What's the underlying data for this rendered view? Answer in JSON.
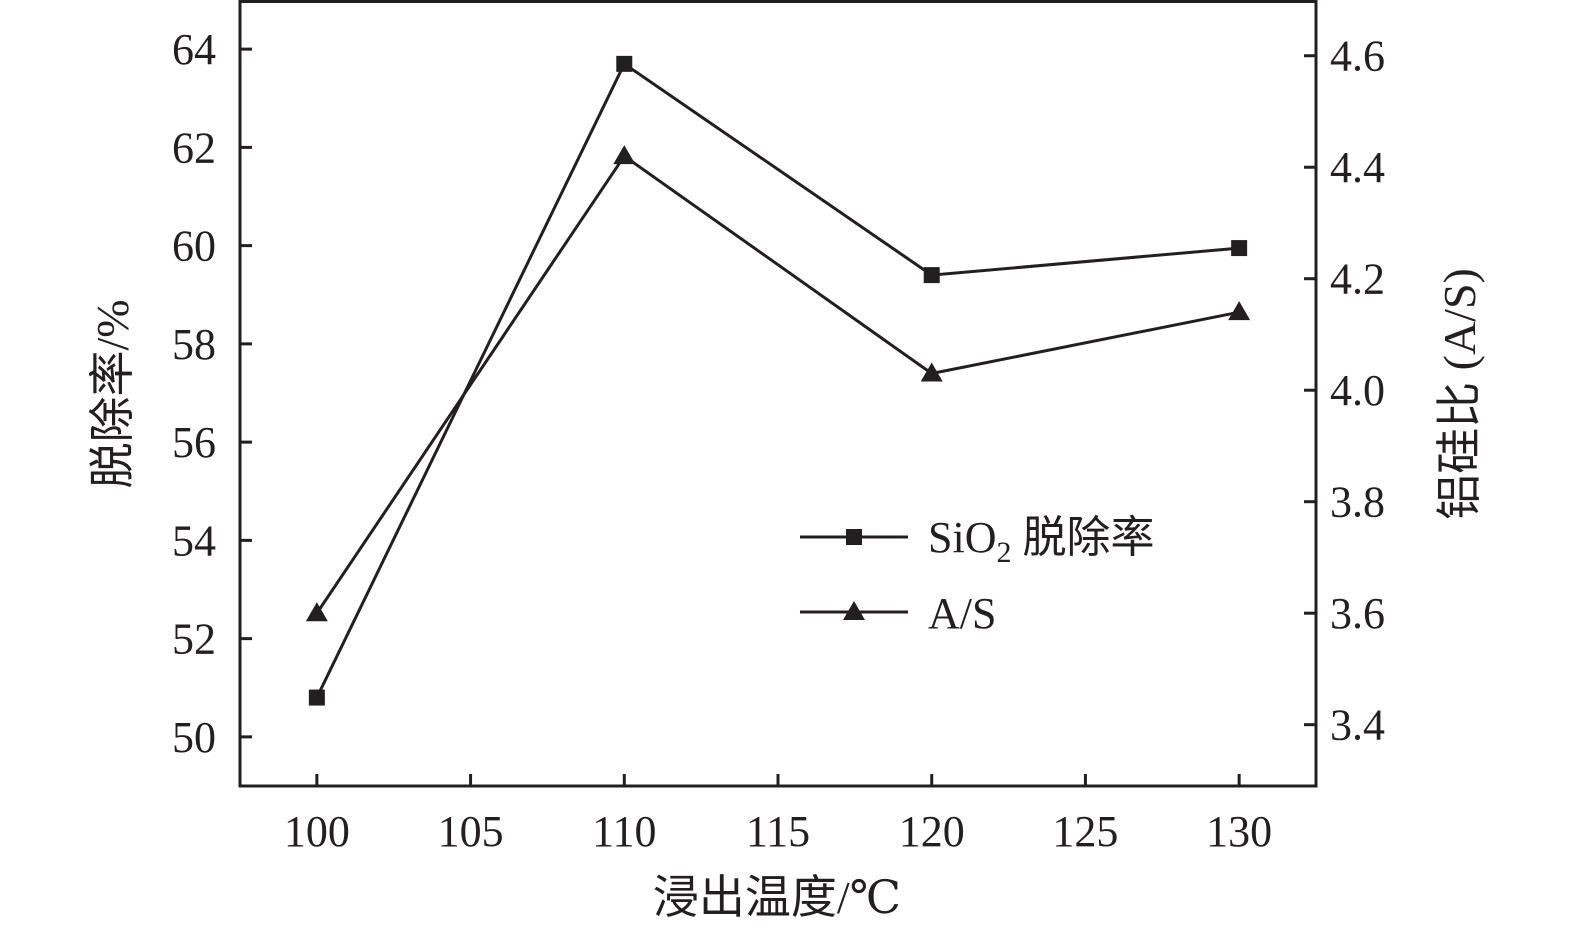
{
  "chart_data": {
    "type": "line",
    "title": "",
    "xlabel": "浸出温度/℃",
    "ylabel": "脱除率/%",
    "y2label": "铝硅比 (A/S)",
    "x": [
      100,
      110,
      120,
      130
    ],
    "xlim": [
      97.5,
      132.5
    ],
    "xticks": [
      100,
      105,
      110,
      115,
      120,
      125,
      130
    ],
    "xtick_labels": [
      "100",
      "105",
      "110",
      "115",
      "120",
      "125",
      "130"
    ],
    "ylim": [
      49,
      65
    ],
    "yticks": [
      50,
      52,
      54,
      56,
      58,
      60,
      62,
      64
    ],
    "ytick_labels": [
      "50",
      "52",
      "54",
      "56",
      "58",
      "60",
      "62",
      "64"
    ],
    "y2lim": [
      3.29,
      4.7
    ],
    "y2ticks": [
      3.4,
      3.6,
      3.8,
      4.0,
      4.2,
      4.4,
      4.6
    ],
    "y2tick_labels": [
      "3.4",
      "3.6",
      "3.8",
      "4.0",
      "4.2",
      "4.4",
      "4.6"
    ],
    "grid": false,
    "legend_position": "center-right",
    "series": [
      {
        "name_main": "SiO",
        "name_sub": "2",
        "name_tail": " 脱除率",
        "marker": "square",
        "axis": "left",
        "values": [
          50.8,
          63.7,
          59.4,
          59.95
        ]
      },
      {
        "name": "A/S",
        "marker": "triangle",
        "axis": "right",
        "values": [
          3.6,
          4.42,
          4.03,
          4.14
        ]
      }
    ],
    "colors": {
      "line": "#231f20",
      "marker": "#231f20"
    }
  }
}
